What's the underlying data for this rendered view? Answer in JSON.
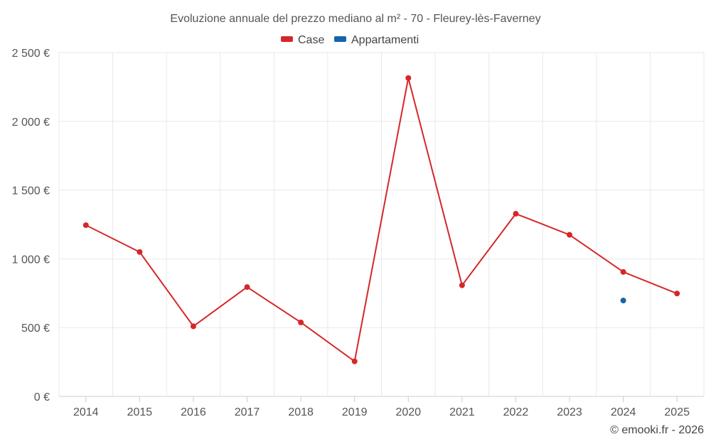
{
  "chart_data": {
    "type": "line",
    "title": "Evoluzione annuale del prezzo mediano al m² - 70 - Fleurey-lès-Faverney",
    "categories": [
      "2014",
      "2015",
      "2016",
      "2017",
      "2018",
      "2019",
      "2020",
      "2021",
      "2022",
      "2023",
      "2024",
      "2025"
    ],
    "ylim": [
      0,
      2500
    ],
    "yticks": [
      0,
      500,
      1000,
      1500,
      2000,
      2500
    ],
    "ytick_labels": [
      "0 €",
      "500 €",
      "1 000 €",
      "1 500 €",
      "2 000 €",
      "2 500 €"
    ],
    "grid": true,
    "legend_position": "top-center",
    "series": [
      {
        "name": "Case",
        "color": "#d62728",
        "values": [
          1245,
          1050,
          510,
          795,
          538,
          255,
          2315,
          808,
          1328,
          1175,
          905,
          748
        ]
      },
      {
        "name": "Appartamenti",
        "color": "#1565a8",
        "values": [
          null,
          null,
          null,
          null,
          null,
          null,
          null,
          null,
          null,
          null,
          697,
          null
        ]
      }
    ]
  },
  "credit": "© emooki.fr - 2026"
}
